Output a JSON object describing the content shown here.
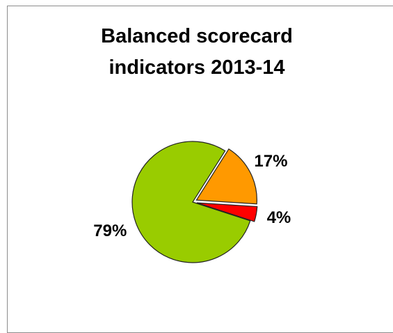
{
  "chart_data": {
    "type": "pie",
    "title": "Balanced scorecard indicators 2013-14",
    "values": [
      79,
      17,
      4
    ],
    "value_labels": [
      "79%",
      "17%",
      "4%"
    ],
    "colors": [
      "#99cc00",
      "#ff9900",
      "#ff0000"
    ]
  }
}
